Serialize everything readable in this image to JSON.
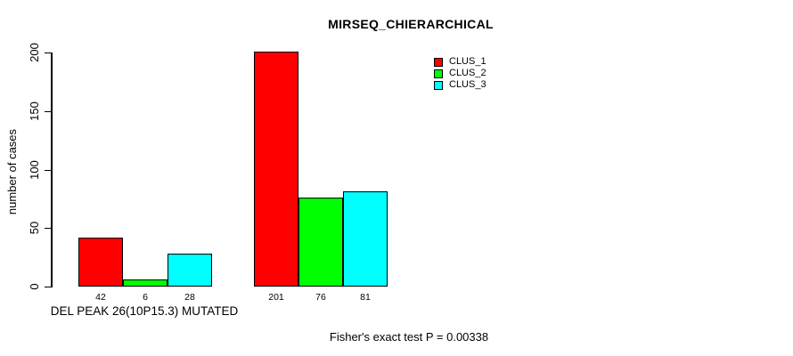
{
  "title": "MIRSEQ_CHIERARCHICAL",
  "footnote": "Fisher's exact test P = 0.00338",
  "colors": {
    "clus_1": "#ff0000",
    "clus_2": "#00ff00",
    "clus_3": "#00ffff",
    "axis": "#000000",
    "background": "#ffffff"
  },
  "legend": {
    "position": "top-right",
    "items": [
      {
        "label": "CLUS_1",
        "color": "#ff0000"
      },
      {
        "label": "CLUS_2",
        "color": "#00ff00"
      },
      {
        "label": "CLUS_3",
        "color": "#00ffff"
      }
    ]
  },
  "chart_data": {
    "type": "bar",
    "title": "MIRSEQ_CHIERARCHICAL",
    "ylabel": "number of cases",
    "xlabel": "DEL PEAK 26(10P15.3) MUTATED",
    "annotation": "Fisher's exact test P = 0.00338",
    "ylim": [
      0,
      200
    ],
    "yticks": [
      0,
      50,
      100,
      150,
      200
    ],
    "grid": false,
    "legend_position": "top-right",
    "categories": [
      "DEL PEAK 26(10P15.3) MUTATED",
      ""
    ],
    "series": [
      {
        "name": "CLUS_1",
        "color": "#ff0000",
        "values": [
          42,
          201
        ]
      },
      {
        "name": "CLUS_2",
        "color": "#00ff00",
        "values": [
          6,
          76
        ]
      },
      {
        "name": "CLUS_3",
        "color": "#00ffff",
        "values": [
          28,
          81
        ]
      }
    ],
    "bar_value_labels": [
      [
        "42",
        "6",
        "28"
      ],
      [
        "201",
        "76",
        "81"
      ]
    ]
  }
}
